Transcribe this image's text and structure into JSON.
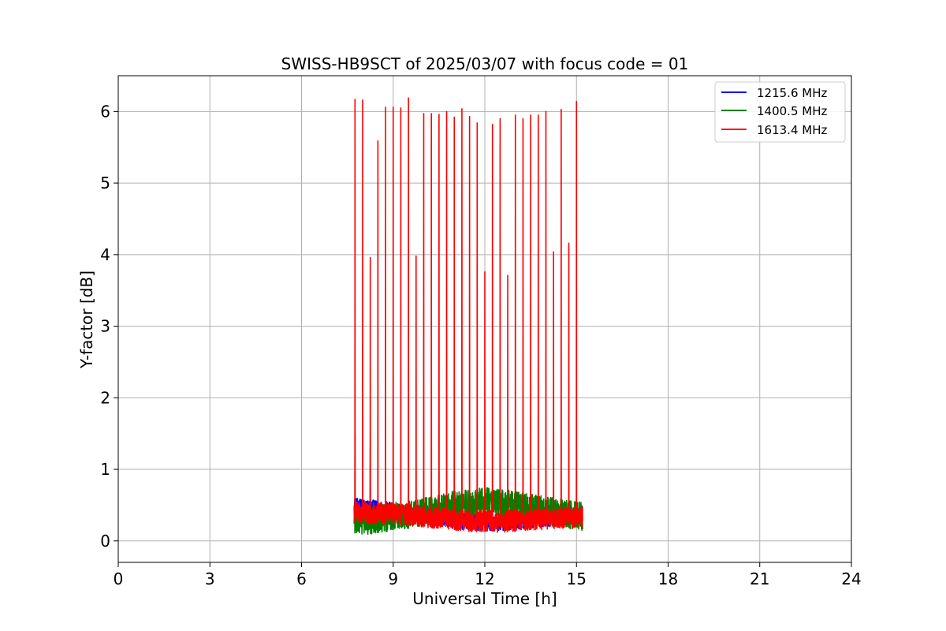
{
  "chart_data": {
    "type": "line",
    "title": "SWISS-HB9SCT of 2025/03/07 with focus code = 01",
    "xlabel": "Universal Time [h]",
    "ylabel": "Y-factor [dB]",
    "xlim": [
      0,
      24
    ],
    "ylim": [
      -0.3,
      6.5
    ],
    "xticks": [
      0,
      3,
      6,
      9,
      12,
      15,
      18,
      21,
      24
    ],
    "yticks": [
      0,
      1,
      2,
      3,
      4,
      5,
      6
    ],
    "grid": true,
    "legend_position": "top-right",
    "series": [
      {
        "name": "1215.6 MHz",
        "color": "#0000ff",
        "baseline": {
          "x": [
            7.72,
            9.0,
            10.5,
            11.5,
            12.5,
            13.5,
            15.2
          ],
          "y": [
            0.48,
            0.42,
            0.34,
            0.26,
            0.26,
            0.3,
            0.36
          ]
        },
        "noise": 0.12,
        "spikes": [
          {
            "x": 8.25,
            "y": 1.3
          }
        ]
      },
      {
        "name": "1400.5 MHz",
        "color": "#008000",
        "baseline": {
          "x": [
            7.72,
            8.5,
            10.0,
            11.0,
            12.0,
            13.0,
            14.0,
            15.2
          ],
          "y": [
            0.28,
            0.3,
            0.4,
            0.5,
            0.55,
            0.5,
            0.42,
            0.34
          ]
        },
        "noise": 0.2,
        "spikes": [
          {
            "x": 7.75,
            "y": 1.5
          }
        ]
      },
      {
        "name": "1613.4 MHz",
        "color": "#ff0000",
        "baseline": {
          "x": [
            7.72,
            9.0,
            10.5,
            11.5,
            12.5,
            13.5,
            15.2
          ],
          "y": [
            0.4,
            0.38,
            0.32,
            0.28,
            0.27,
            0.3,
            0.33
          ]
        },
        "noise": 0.15,
        "spikes": [
          {
            "x": 7.75,
            "y": 6.17
          },
          {
            "x": 8.0,
            "y": 6.16
          },
          {
            "x": 8.25,
            "y": 3.96
          },
          {
            "x": 8.5,
            "y": 5.59
          },
          {
            "x": 8.75,
            "y": 6.06
          },
          {
            "x": 9.0,
            "y": 6.06
          },
          {
            "x": 9.25,
            "y": 6.05
          },
          {
            "x": 9.5,
            "y": 6.19
          },
          {
            "x": 9.75,
            "y": 3.98
          },
          {
            "x": 10.0,
            "y": 5.97
          },
          {
            "x": 10.25,
            "y": 5.97
          },
          {
            "x": 10.5,
            "y": 5.96
          },
          {
            "x": 10.75,
            "y": 6.0
          },
          {
            "x": 11.0,
            "y": 5.92
          },
          {
            "x": 11.25,
            "y": 6.04
          },
          {
            "x": 11.5,
            "y": 5.93
          },
          {
            "x": 11.75,
            "y": 5.84
          },
          {
            "x": 12.0,
            "y": 3.76
          },
          {
            "x": 12.25,
            "y": 5.82
          },
          {
            "x": 12.5,
            "y": 5.9
          },
          {
            "x": 12.75,
            "y": 3.71
          },
          {
            "x": 13.0,
            "y": 5.95
          },
          {
            "x": 13.25,
            "y": 5.9
          },
          {
            "x": 13.5,
            "y": 5.95
          },
          {
            "x": 13.75,
            "y": 5.95
          },
          {
            "x": 14.0,
            "y": 6.0
          },
          {
            "x": 14.25,
            "y": 4.04
          },
          {
            "x": 14.5,
            "y": 6.03
          },
          {
            "x": 14.75,
            "y": 4.16
          },
          {
            "x": 15.0,
            "y": 6.14
          }
        ]
      }
    ]
  }
}
